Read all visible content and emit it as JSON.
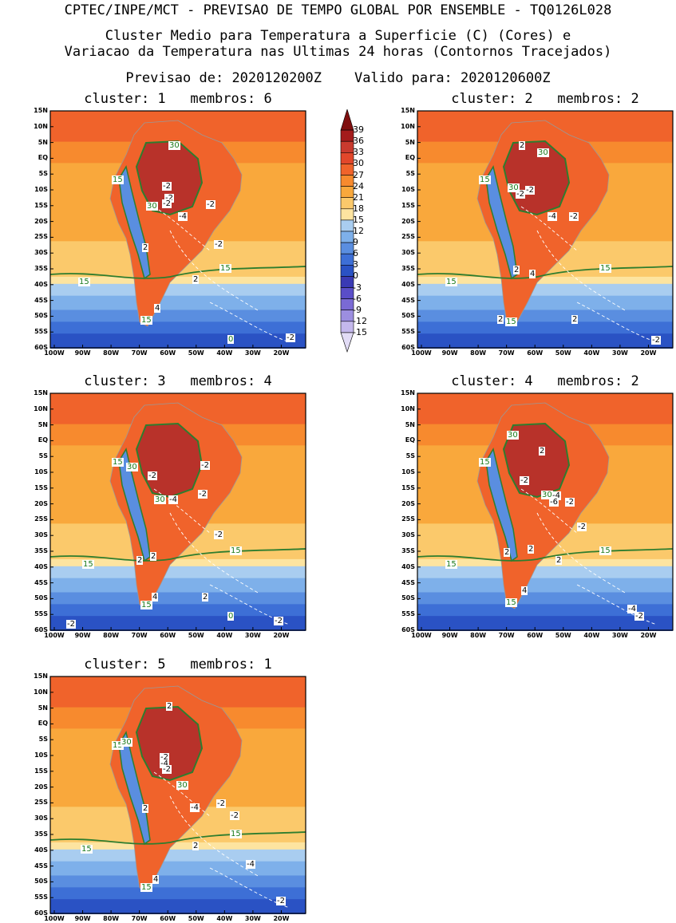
{
  "header": {
    "line1": "CPTEC/INPE/MCT - PREVISAO DE TEMPO GLOBAL POR ENSEMBLE - TQ0126L028",
    "line2": "Cluster Medio para Temperatura a Superficie (C) (Cores) e",
    "line3": "Variacao da Temperatura nas Ultimas 24 horas (Contornos Tracejados)",
    "line4": "Previsao de: 2020120200Z    Valido para: 2020120600Z"
  },
  "y_ticks": [
    "15N",
    "10N",
    "5N",
    "EQ",
    "5S",
    "10S",
    "15S",
    "20S",
    "25S",
    "30S",
    "35S",
    "40S",
    "45S",
    "50S",
    "55S",
    "60S"
  ],
  "x_ticks": [
    "100W",
    "90W",
    "80W",
    "70W",
    "60W",
    "50W",
    "40W",
    "30W",
    "20W"
  ],
  "colorbar": {
    "labels": [
      "39",
      "36",
      "33",
      "30",
      "27",
      "24",
      "21",
      "18",
      "15",
      "12",
      "9",
      "6",
      "3",
      "0",
      "-3",
      "-6",
      "-9",
      "-12",
      "-15"
    ],
    "colors": [
      "#7f0f0f",
      "#a41c1c",
      "#c93a2e",
      "#e2472b",
      "#f0632b",
      "#f78a2e",
      "#f9a83c",
      "#fbc96b",
      "#fde4a0",
      "#a9cdf0",
      "#7eb0ea",
      "#5a8ee0",
      "#3d6fd6",
      "#2a52c4",
      "#3a3ab4",
      "#5a4ec8",
      "#7a6ad4",
      "#9c8ee0",
      "#c4b8ec",
      "#e2dcf6"
    ]
  },
  "panels": [
    {
      "title": "cluster: 1   membros: 6",
      "labels": [
        {
          "t": "30",
          "c": "g",
          "x": 148,
          "y": 44
        },
        {
          "t": "15",
          "c": "g",
          "x": 77,
          "y": 87
        },
        {
          "t": "-2",
          "c": "w",
          "x": 140,
          "y": 95
        },
        {
          "t": "-2",
          "c": "w",
          "x": 143,
          "y": 110
        },
        {
          "t": "-2",
          "c": "w",
          "x": 140,
          "y": 117
        },
        {
          "t": "30",
          "c": "g",
          "x": 120,
          "y": 120
        },
        {
          "t": "-2",
          "c": "w",
          "x": 195,
          "y": 118
        },
        {
          "t": "-4",
          "c": "w",
          "x": 160,
          "y": 133
        },
        {
          "t": "-2",
          "c": "w",
          "x": 205,
          "y": 168
        },
        {
          "t": "2",
          "c": "w",
          "x": 115,
          "y": 172
        },
        {
          "t": "2",
          "c": "w",
          "x": 178,
          "y": 212
        },
        {
          "t": "15",
          "c": "g",
          "x": 212,
          "y": 198
        },
        {
          "t": "15",
          "c": "g",
          "x": 35,
          "y": 215
        },
        {
          "t": "4",
          "c": "w",
          "x": 130,
          "y": 248
        },
        {
          "t": "15",
          "c": "g",
          "x": 113,
          "y": 263
        },
        {
          "t": "0",
          "c": "g",
          "x": 222,
          "y": 287
        },
        {
          "t": "-2",
          "c": "w",
          "x": 295,
          "y": 285
        }
      ]
    },
    {
      "title": "cluster: 2   membros: 2",
      "labels": [
        {
          "t": "2",
          "c": "w",
          "x": 127,
          "y": 44
        },
        {
          "t": "30",
          "c": "g",
          "x": 150,
          "y": 53
        },
        {
          "t": "15",
          "c": "g",
          "x": 77,
          "y": 87
        },
        {
          "t": "30",
          "c": "g",
          "x": 113,
          "y": 97
        },
        {
          "t": "-2",
          "c": "w",
          "x": 123,
          "y": 105
        },
        {
          "t": "-2",
          "c": "w",
          "x": 135,
          "y": 100
        },
        {
          "t": "-4",
          "c": "w",
          "x": 163,
          "y": 133
        },
        {
          "t": "-2",
          "c": "w",
          "x": 190,
          "y": 133
        },
        {
          "t": "2",
          "c": "w",
          "x": 120,
          "y": 200
        },
        {
          "t": "4",
          "c": "w",
          "x": 140,
          "y": 205
        },
        {
          "t": "15",
          "c": "g",
          "x": 228,
          "y": 198
        },
        {
          "t": "15",
          "c": "g",
          "x": 35,
          "y": 215
        },
        {
          "t": "2",
          "c": "w",
          "x": 100,
          "y": 262
        },
        {
          "t": "15",
          "c": "g",
          "x": 110,
          "y": 265
        },
        {
          "t": "2",
          "c": "w",
          "x": 193,
          "y": 262
        },
        {
          "t": "-2",
          "c": "w",
          "x": 293,
          "y": 288
        }
      ]
    },
    {
      "title": "cluster: 3   membros: 4",
      "labels": [
        {
          "t": "15",
          "c": "g",
          "x": 77,
          "y": 87
        },
        {
          "t": "30",
          "c": "g",
          "x": 95,
          "y": 93
        },
        {
          "t": "-2",
          "c": "w",
          "x": 122,
          "y": 104
        },
        {
          "t": "-2",
          "c": "w",
          "x": 188,
          "y": 91
        },
        {
          "t": "-2",
          "c": "w",
          "x": 185,
          "y": 127
        },
        {
          "t": "30",
          "c": "g",
          "x": 130,
          "y": 134
        },
        {
          "t": "-4",
          "c": "w",
          "x": 148,
          "y": 134
        },
        {
          "t": "-2",
          "c": "w",
          "x": 205,
          "y": 178
        },
        {
          "t": "2",
          "c": "w",
          "x": 108,
          "y": 210
        },
        {
          "t": "2",
          "c": "w",
          "x": 125,
          "y": 205
        },
        {
          "t": "15",
          "c": "g",
          "x": 225,
          "y": 198
        },
        {
          "t": "15",
          "c": "g",
          "x": 40,
          "y": 215
        },
        {
          "t": "4",
          "c": "w",
          "x": 127,
          "y": 256
        },
        {
          "t": "2",
          "c": "w",
          "x": 190,
          "y": 256
        },
        {
          "t": "15",
          "c": "g",
          "x": 113,
          "y": 266
        },
        {
          "t": "0",
          "c": "g",
          "x": 222,
          "y": 280
        },
        {
          "t": "-2",
          "c": "w",
          "x": 280,
          "y": 286
        },
        {
          "t": "-2",
          "c": "w",
          "x": 20,
          "y": 290
        }
      ]
    },
    {
      "title": "cluster: 4   membros: 2",
      "labels": [
        {
          "t": "30",
          "c": "g",
          "x": 112,
          "y": 53
        },
        {
          "t": "2",
          "c": "w",
          "x": 152,
          "y": 73
        },
        {
          "t": "15",
          "c": "g",
          "x": 77,
          "y": 87
        },
        {
          "t": "-2",
          "c": "w",
          "x": 128,
          "y": 110
        },
        {
          "t": "30",
          "c": "g",
          "x": 155,
          "y": 128
        },
        {
          "t": "-4",
          "c": "w",
          "x": 168,
          "y": 129
        },
        {
          "t": "-6",
          "c": "w",
          "x": 165,
          "y": 137
        },
        {
          "t": "-2",
          "c": "w",
          "x": 185,
          "y": 137
        },
        {
          "t": "-2",
          "c": "w",
          "x": 200,
          "y": 168
        },
        {
          "t": "2",
          "c": "w",
          "x": 138,
          "y": 196
        },
        {
          "t": "2",
          "c": "w",
          "x": 173,
          "y": 210
        },
        {
          "t": "2",
          "c": "w",
          "x": 108,
          "y": 200
        },
        {
          "t": "15",
          "c": "g",
          "x": 228,
          "y": 198
        },
        {
          "t": "15",
          "c": "g",
          "x": 35,
          "y": 215
        },
        {
          "t": "4",
          "c": "w",
          "x": 130,
          "y": 248
        },
        {
          "t": "15",
          "c": "g",
          "x": 110,
          "y": 263
        },
        {
          "t": "-4",
          "c": "w",
          "x": 263,
          "y": 271
        },
        {
          "t": "-2",
          "c": "w",
          "x": 272,
          "y": 280
        }
      ]
    },
    {
      "title": "cluster: 5   membros: 1",
      "labels": [
        {
          "t": "2",
          "c": "w",
          "x": 145,
          "y": 38
        },
        {
          "t": "15",
          "c": "g",
          "x": 77,
          "y": 87
        },
        {
          "t": "30",
          "c": "g",
          "x": 88,
          "y": 83
        },
        {
          "t": "-2",
          "c": "w",
          "x": 137,
          "y": 102
        },
        {
          "t": "-4",
          "c": "w",
          "x": 137,
          "y": 110
        },
        {
          "t": "-2",
          "c": "w",
          "x": 140,
          "y": 117
        },
        {
          "t": "30",
          "c": "g",
          "x": 158,
          "y": 137
        },
        {
          "t": "-2",
          "c": "w",
          "x": 208,
          "y": 160
        },
        {
          "t": "-4",
          "c": "w",
          "x": 175,
          "y": 165
        },
        {
          "t": "-2",
          "c": "w",
          "x": 225,
          "y": 175
        },
        {
          "t": "2",
          "c": "w",
          "x": 115,
          "y": 166
        },
        {
          "t": "2",
          "c": "w",
          "x": 178,
          "y": 213
        },
        {
          "t": "15",
          "c": "g",
          "x": 225,
          "y": 198
        },
        {
          "t": "15",
          "c": "g",
          "x": 38,
          "y": 217
        },
        {
          "t": "-4",
          "c": "w",
          "x": 245,
          "y": 236
        },
        {
          "t": "4",
          "c": "w",
          "x": 128,
          "y": 255
        },
        {
          "t": "15",
          "c": "g",
          "x": 113,
          "y": 265
        },
        {
          "t": "-2",
          "c": "w",
          "x": 283,
          "y": 282
        }
      ]
    }
  ]
}
